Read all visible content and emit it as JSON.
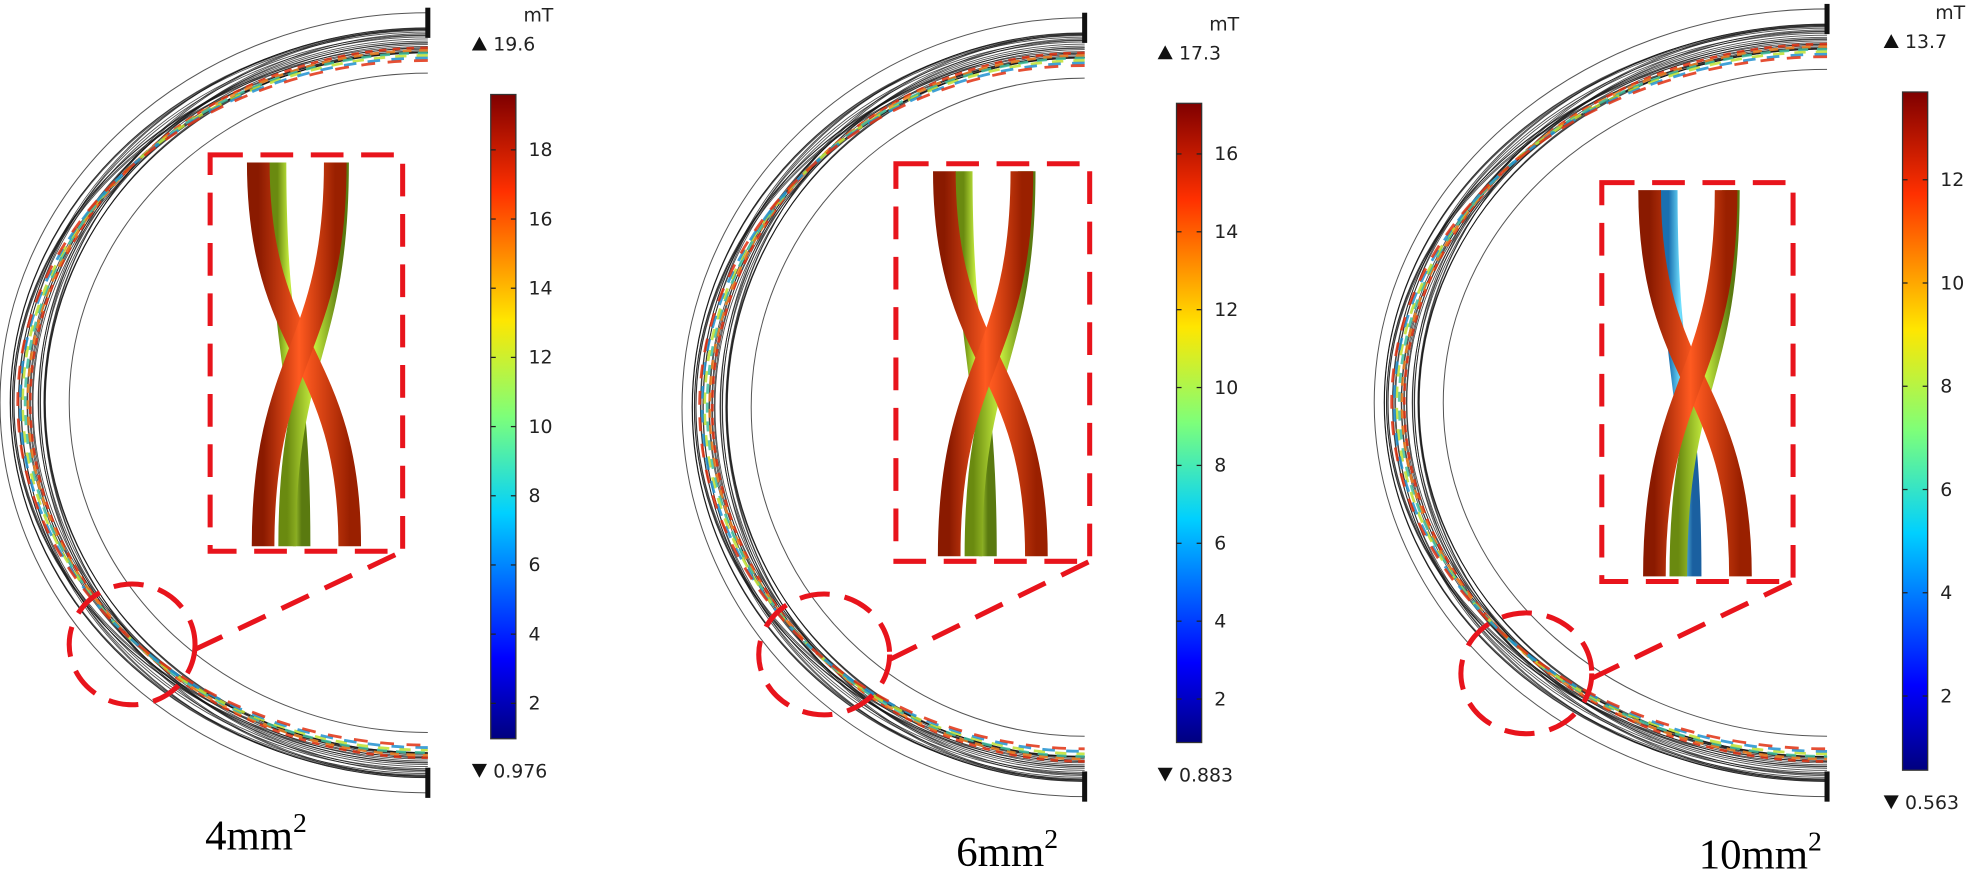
{
  "panels": [
    {
      "label": {
        "base": "4mm",
        "sup": "2"
      },
      "colorbar": {
        "unit": "mT",
        "max": 19.6,
        "min": 0.976,
        "ticks": [
          2,
          4,
          6,
          8,
          10,
          12,
          14,
          16,
          18
        ]
      }
    },
    {
      "label": {
        "base": "6mm",
        "sup": "2"
      },
      "colorbar": {
        "unit": "mT",
        "max": 17.3,
        "min": 0.883,
        "ticks": [
          2,
          4,
          6,
          8,
          10,
          12,
          14,
          16
        ]
      }
    },
    {
      "label": {
        "base": "10mm",
        "sup": "2"
      },
      "colorbar": {
        "unit": "mT",
        "max": 13.7,
        "min": 0.563,
        "ticks": [
          2,
          4,
          6,
          8,
          10,
          12
        ]
      }
    }
  ]
}
